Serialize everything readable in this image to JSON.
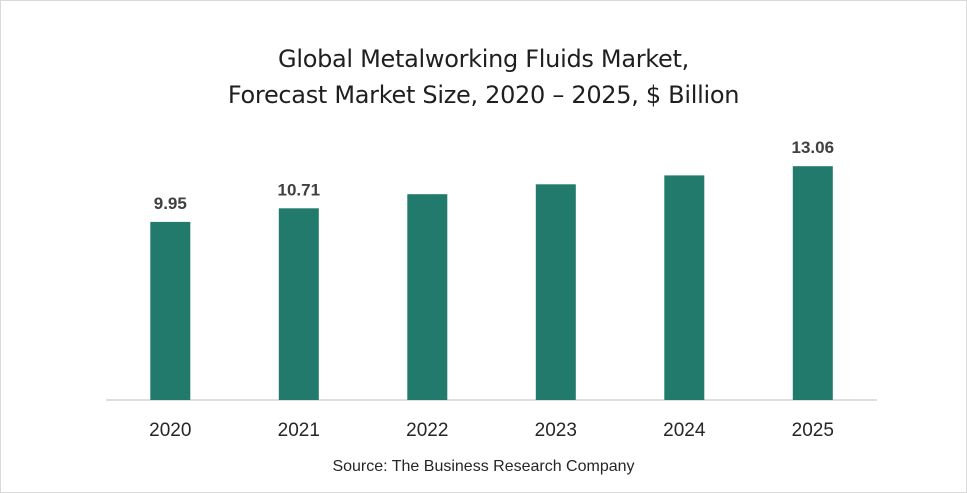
{
  "chart_data": {
    "type": "bar",
    "title_line1": "Global Metalworking Fluids Market,",
    "title_line2": "Forecast Market Size, 2020 – 2025, $ Billion",
    "categories": [
      "2020",
      "2021",
      "2022",
      "2023",
      "2024",
      "2025"
    ],
    "values": [
      9.95,
      10.71,
      11.5,
      12.05,
      12.55,
      13.06
    ],
    "data_labels": [
      "9.95",
      "10.71",
      "",
      "",
      "",
      "13.06"
    ],
    "bar_color": "#217a6c",
    "ylim": [
      0,
      14
    ],
    "grid": false,
    "legend": "none",
    "xlabel": "",
    "ylabel": ""
  },
  "source": "Source: The Business Research Company"
}
